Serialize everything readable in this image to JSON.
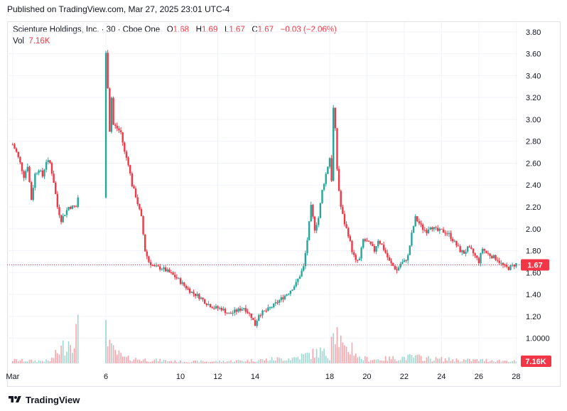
{
  "header": {
    "published": "Published on TradingView.com, Mar 27, 2025 23:01 UTC-4"
  },
  "legend": {
    "symbol": "Scienture Holdings, Inc. · 30 · Cboe One",
    "o_label": "O",
    "o_value": "1.68",
    "h_label": "H",
    "h_value": "1.69",
    "l_label": "L",
    "l_value": "1.67",
    "c_label": "C",
    "c_value": "1.67",
    "change": "−0.03 (−2.06%)",
    "vol_label": "Vol",
    "vol_value": "7.16K"
  },
  "footer": {
    "brand": "TradingView"
  },
  "colors": {
    "up": "#26a69a",
    "down": "#f23645",
    "grid": "#f0f3fa",
    "text": "#131722"
  },
  "chart_data": {
    "type": "candlestick",
    "title": "Scienture Holdings, Inc. · 30 · Cboe One",
    "interval": "30",
    "y_ticks": [
      "3.80",
      "3.60",
      "3.40",
      "3.20",
      "3.00",
      "2.80",
      "2.60",
      "2.40",
      "2.20",
      "2.00",
      "1.80",
      "1.60",
      "1.40",
      "1.20",
      "1.0000"
    ],
    "ylim": [
      0.77,
      3.89
    ],
    "x_ticks": [
      {
        "label": "Mar",
        "t": 0
      },
      {
        "label": "6",
        "t": 5
      },
      {
        "label": "10",
        "t": 9
      },
      {
        "label": "12",
        "t": 11
      },
      {
        "label": "14",
        "t": 13
      },
      {
        "label": "18",
        "t": 17
      },
      {
        "label": "20",
        "t": 19
      },
      {
        "label": "22",
        "t": 21
      },
      {
        "label": "24",
        "t": 23
      },
      {
        "label": "26",
        "t": 25
      },
      {
        "label": "28",
        "t": 27
      }
    ],
    "xlim": [
      -0.3,
      27.1
    ],
    "last_price": 1.67,
    "last_price_label": "1.67",
    "last_volume_label": "7.16K",
    "price_path": [
      [
        0,
        2.77
      ],
      [
        0.2,
        2.7
      ],
      [
        0.4,
        2.6
      ],
      [
        0.6,
        2.48
      ],
      [
        0.8,
        2.58
      ],
      [
        1.0,
        2.27
      ],
      [
        1.2,
        2.5
      ],
      [
        1.4,
        2.55
      ],
      [
        1.6,
        2.48
      ],
      [
        1.8,
        2.62
      ],
      [
        2.0,
        2.6
      ],
      [
        2.2,
        2.43
      ],
      [
        2.4,
        2.2
      ],
      [
        2.6,
        2.08
      ],
      [
        3.0,
        2.2
      ],
      [
        3.4,
        2.2
      ],
      [
        5.0,
        3.6
      ],
      [
        5.1,
        3.3
      ],
      [
        5.2,
        2.9
      ],
      [
        5.3,
        3.2
      ],
      [
        5.4,
        2.95
      ],
      [
        5.6,
        2.92
      ],
      [
        5.8,
        2.88
      ],
      [
        6.0,
        2.7
      ],
      [
        6.2,
        2.6
      ],
      [
        6.4,
        2.4
      ],
      [
        6.6,
        2.3
      ],
      [
        6.9,
        2.1
      ],
      [
        7.1,
        1.8
      ],
      [
        7.3,
        1.7
      ],
      [
        7.6,
        1.65
      ],
      [
        8.0,
        1.64
      ],
      [
        8.4,
        1.6
      ],
      [
        8.8,
        1.55
      ],
      [
        9.2,
        1.48
      ],
      [
        9.6,
        1.42
      ],
      [
        10.0,
        1.38
      ],
      [
        10.4,
        1.32
      ],
      [
        10.8,
        1.28
      ],
      [
        11.2,
        1.27
      ],
      [
        11.6,
        1.22
      ],
      [
        12.0,
        1.25
      ],
      [
        12.4,
        1.28
      ],
      [
        12.8,
        1.2
      ],
      [
        13.0,
        1.12
      ],
      [
        13.2,
        1.22
      ],
      [
        13.6,
        1.25
      ],
      [
        14.0,
        1.3
      ],
      [
        14.4,
        1.36
      ],
      [
        14.8,
        1.42
      ],
      [
        15.2,
        1.5
      ],
      [
        15.6,
        1.65
      ],
      [
        15.8,
        1.9
      ],
      [
        16.0,
        2.2
      ],
      [
        16.2,
        2.0
      ],
      [
        16.4,
        2.1
      ],
      [
        16.6,
        2.35
      ],
      [
        16.8,
        2.5
      ],
      [
        17.0,
        2.65
      ],
      [
        17.1,
        2.45
      ],
      [
        17.2,
        3.1
      ],
      [
        17.3,
        2.9
      ],
      [
        17.4,
        2.55
      ],
      [
        17.5,
        2.35
      ],
      [
        17.6,
        2.2
      ],
      [
        17.8,
        2.05
      ],
      [
        18.0,
        1.95
      ],
      [
        18.2,
        1.8
      ],
      [
        18.4,
        1.7
      ],
      [
        18.6,
        1.72
      ],
      [
        18.8,
        1.9
      ],
      [
        19.0,
        1.88
      ],
      [
        19.2,
        1.85
      ],
      [
        19.4,
        1.8
      ],
      [
        19.6,
        1.9
      ],
      [
        19.8,
        1.85
      ],
      [
        20.0,
        1.78
      ],
      [
        20.2,
        1.7
      ],
      [
        20.4,
        1.66
      ],
      [
        20.6,
        1.62
      ],
      [
        20.8,
        1.68
      ],
      [
        21.0,
        1.7
      ],
      [
        21.2,
        1.75
      ],
      [
        21.4,
        1.95
      ],
      [
        21.6,
        2.1
      ],
      [
        21.8,
        2.05
      ],
      [
        22.0,
        2.0
      ],
      [
        22.2,
        1.98
      ],
      [
        22.4,
        2.03
      ],
      [
        22.6,
        2.0
      ],
      [
        22.8,
        1.98
      ],
      [
        23.0,
        1.98
      ],
      [
        23.2,
        1.97
      ],
      [
        23.4,
        1.95
      ],
      [
        23.6,
        1.9
      ],
      [
        23.8,
        1.85
      ],
      [
        24.0,
        1.8
      ],
      [
        24.2,
        1.78
      ],
      [
        24.4,
        1.82
      ],
      [
        24.6,
        1.8
      ],
      [
        24.8,
        1.75
      ],
      [
        25.0,
        1.7
      ],
      [
        25.2,
        1.82
      ],
      [
        25.4,
        1.78
      ],
      [
        25.6,
        1.76
      ],
      [
        25.8,
        1.74
      ],
      [
        26.0,
        1.72
      ],
      [
        26.2,
        1.68
      ],
      [
        26.4,
        1.65
      ],
      [
        26.6,
        1.64
      ],
      [
        26.8,
        1.66
      ],
      [
        27.0,
        1.68
      ],
      [
        27.1,
        1.67
      ]
    ],
    "volume_path": [
      [
        0,
        0.05
      ],
      [
        1,
        0.04
      ],
      [
        2,
        0.04
      ],
      [
        4.95,
        0.95
      ],
      [
        5.1,
        0.55
      ],
      [
        5.25,
        0.22
      ],
      [
        6.0,
        0.08
      ],
      [
        7.0,
        0.06
      ],
      [
        9,
        0.03
      ],
      [
        11,
        0.03
      ],
      [
        13,
        0.05
      ],
      [
        15,
        0.08
      ],
      [
        16.5,
        0.18
      ],
      [
        17.0,
        0.12
      ],
      [
        17.2,
        0.82
      ],
      [
        17.35,
        0.52
      ],
      [
        17.8,
        0.18
      ],
      [
        18.2,
        0.26
      ],
      [
        18.6,
        0.08
      ],
      [
        19.5,
        0.06
      ],
      [
        20.5,
        0.08
      ],
      [
        21.5,
        0.1
      ],
      [
        22.5,
        0.07
      ],
      [
        23.5,
        0.06
      ],
      [
        24.5,
        0.05
      ],
      [
        25.5,
        0.05
      ],
      [
        26.5,
        0.04
      ],
      [
        27.1,
        0.03
      ]
    ]
  }
}
